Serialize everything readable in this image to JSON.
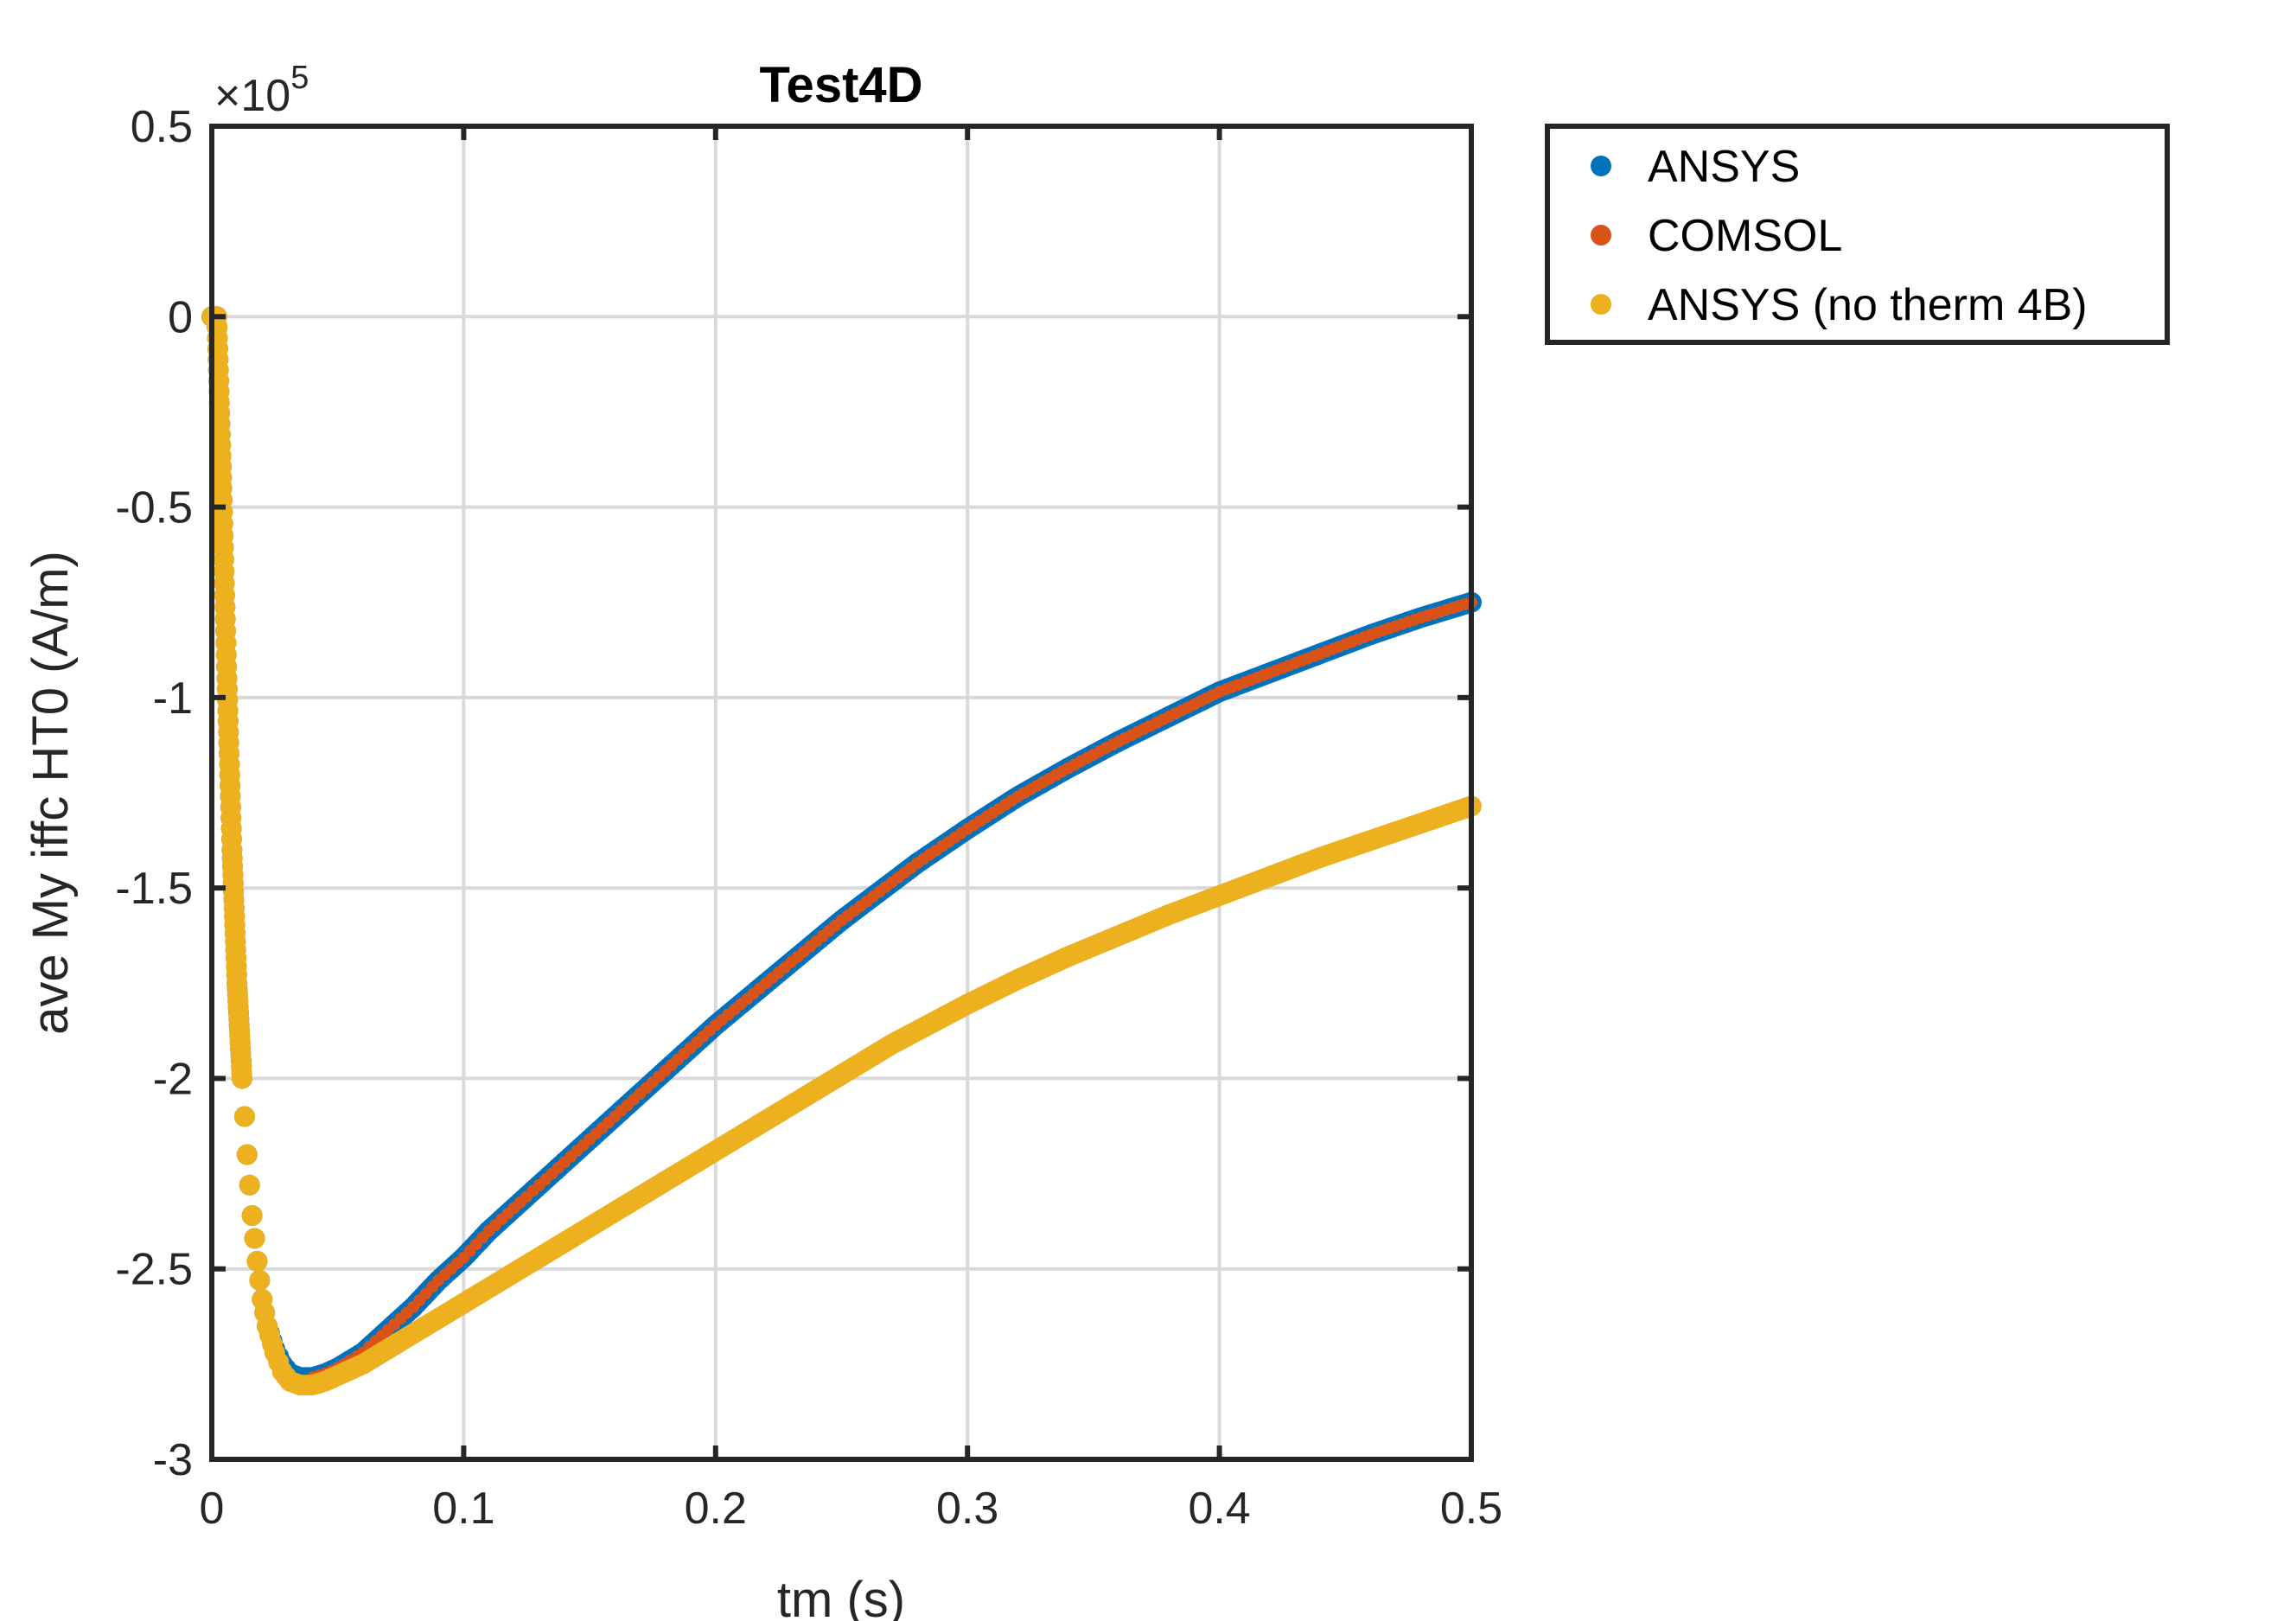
{
  "chart_data": {
    "type": "scatter",
    "title": "Test4D",
    "xlabel": "tm (s)",
    "ylabel": "ave My iffc HT0 (A/m)",
    "xlim": [
      0,
      0.5
    ],
    "ylim": [
      -300000,
      50000
    ],
    "x_ticks": [
      0,
      0.1,
      0.2,
      0.3,
      0.4,
      0.5
    ],
    "x_tick_labels": [
      "0",
      "0.1",
      "0.2",
      "0.3",
      "0.4",
      "0.5"
    ],
    "y_ticks": [
      50000,
      0,
      -50000,
      -100000,
      -150000,
      -200000,
      -250000,
      -300000
    ],
    "y_tick_labels": [
      "0.5",
      "0",
      "-0.5",
      "-1",
      "-1.5",
      "-2",
      "-2.5",
      "-3"
    ],
    "y_exponent": {
      "base": "×10",
      "power": "5"
    },
    "grid": true,
    "legend_position": "outside-top-right",
    "series": [
      {
        "name": "ANSYS",
        "color": "#0072BD",
        "marker": "dot",
        "points": [
          [
            0.0,
            0
          ],
          [
            0.002,
            0
          ],
          [
            0.004,
            -45000
          ],
          [
            0.006,
            -95000
          ],
          [
            0.008,
            -140000
          ],
          [
            0.01,
            -175000
          ],
          [
            0.012,
            -200000
          ],
          [
            0.014,
            -220000
          ],
          [
            0.016,
            -236000
          ],
          [
            0.018,
            -248000
          ],
          [
            0.02,
            -258000
          ],
          [
            0.022,
            -265000
          ],
          [
            0.025,
            -271000
          ],
          [
            0.028,
            -275000
          ],
          [
            0.031,
            -277500
          ],
          [
            0.035,
            -278500
          ],
          [
            0.04,
            -278500
          ],
          [
            0.045,
            -277500
          ],
          [
            0.05,
            -276000
          ],
          [
            0.06,
            -272000
          ],
          [
            0.07,
            -266000
          ],
          [
            0.08,
            -260000
          ],
          [
            0.09,
            -253000
          ],
          [
            0.1,
            -247000
          ],
          [
            0.11,
            -240000
          ],
          [
            0.12,
            -234000
          ],
          [
            0.13,
            -228000
          ],
          [
            0.14,
            -222000
          ],
          [
            0.15,
            -216000
          ],
          [
            0.16,
            -210000
          ],
          [
            0.17,
            -204000
          ],
          [
            0.18,
            -198000
          ],
          [
            0.19,
            -192000
          ],
          [
            0.2,
            -186000
          ],
          [
            0.21,
            -180500
          ],
          [
            0.22,
            -175000
          ],
          [
            0.23,
            -169500
          ],
          [
            0.24,
            -164000
          ],
          [
            0.25,
            -158500
          ],
          [
            0.26,
            -153500
          ],
          [
            0.27,
            -148500
          ],
          [
            0.28,
            -143500
          ],
          [
            0.29,
            -139000
          ],
          [
            0.3,
            -134500
          ],
          [
            0.32,
            -126000
          ],
          [
            0.34,
            -118500
          ],
          [
            0.36,
            -111500
          ],
          [
            0.38,
            -105000
          ],
          [
            0.4,
            -98500
          ],
          [
            0.42,
            -93500
          ],
          [
            0.44,
            -88500
          ],
          [
            0.46,
            -83500
          ],
          [
            0.48,
            -79000
          ],
          [
            0.5,
            -75000
          ]
        ]
      },
      {
        "name": "COMSOL",
        "color": "#D95319",
        "marker": "dot",
        "points": [
          [
            0.04,
            -278500
          ],
          [
            0.045,
            -277500
          ],
          [
            0.05,
            -276000
          ],
          [
            0.06,
            -272000
          ],
          [
            0.07,
            -266000
          ],
          [
            0.08,
            -260000
          ],
          [
            0.09,
            -253000
          ],
          [
            0.1,
            -247000
          ],
          [
            0.11,
            -240000
          ],
          [
            0.12,
            -234000
          ],
          [
            0.13,
            -228000
          ],
          [
            0.14,
            -222000
          ],
          [
            0.15,
            -216000
          ],
          [
            0.16,
            -210000
          ],
          [
            0.17,
            -204000
          ],
          [
            0.18,
            -198000
          ],
          [
            0.19,
            -192000
          ],
          [
            0.2,
            -186000
          ],
          [
            0.21,
            -180500
          ],
          [
            0.22,
            -175000
          ],
          [
            0.23,
            -169500
          ],
          [
            0.24,
            -164000
          ],
          [
            0.25,
            -158500
          ],
          [
            0.26,
            -153500
          ],
          [
            0.27,
            -148500
          ],
          [
            0.28,
            -143500
          ],
          [
            0.29,
            -139000
          ],
          [
            0.3,
            -134500
          ],
          [
            0.32,
            -126000
          ],
          [
            0.34,
            -118500
          ],
          [
            0.36,
            -111500
          ],
          [
            0.38,
            -105000
          ],
          [
            0.4,
            -98500
          ],
          [
            0.42,
            -93500
          ],
          [
            0.44,
            -88500
          ],
          [
            0.46,
            -83500
          ],
          [
            0.48,
            -79000
          ],
          [
            0.5,
            -75000
          ]
        ]
      },
      {
        "name": "ANSYS (no therm 4B)",
        "color": "#EDB120",
        "marker": "dot",
        "points": [
          [
            0.0,
            0
          ],
          [
            0.002,
            0
          ],
          [
            0.004,
            -45000
          ],
          [
            0.006,
            -95000
          ],
          [
            0.008,
            -140000
          ],
          [
            0.01,
            -175000
          ],
          [
            0.012,
            -200000
          ],
          [
            0.014,
            -220000
          ],
          [
            0.016,
            -236000
          ],
          [
            0.018,
            -248000
          ],
          [
            0.02,
            -258000
          ],
          [
            0.022,
            -265000
          ],
          [
            0.025,
            -272000
          ],
          [
            0.028,
            -277000
          ],
          [
            0.031,
            -279500
          ],
          [
            0.035,
            -280500
          ],
          [
            0.04,
            -280500
          ],
          [
            0.045,
            -279500
          ],
          [
            0.05,
            -278000
          ],
          [
            0.06,
            -275000
          ],
          [
            0.07,
            -271000
          ],
          [
            0.08,
            -267000
          ],
          [
            0.09,
            -263000
          ],
          [
            0.1,
            -259000
          ],
          [
            0.11,
            -255000
          ],
          [
            0.12,
            -251000
          ],
          [
            0.13,
            -247000
          ],
          [
            0.14,
            -243000
          ],
          [
            0.15,
            -239000
          ],
          [
            0.16,
            -235000
          ],
          [
            0.17,
            -231000
          ],
          [
            0.18,
            -227000
          ],
          [
            0.19,
            -223000
          ],
          [
            0.2,
            -219000
          ],
          [
            0.21,
            -215000
          ],
          [
            0.22,
            -211000
          ],
          [
            0.23,
            -207000
          ],
          [
            0.24,
            -203000
          ],
          [
            0.25,
            -199000
          ],
          [
            0.26,
            -195000
          ],
          [
            0.27,
            -191000
          ],
          [
            0.28,
            -187500
          ],
          [
            0.29,
            -184000
          ],
          [
            0.3,
            -180500
          ],
          [
            0.32,
            -174000
          ],
          [
            0.34,
            -168000
          ],
          [
            0.36,
            -162500
          ],
          [
            0.38,
            -157000
          ],
          [
            0.4,
            -152000
          ],
          [
            0.42,
            -147000
          ],
          [
            0.44,
            -142000
          ],
          [
            0.46,
            -137500
          ],
          [
            0.48,
            -133000
          ],
          [
            0.5,
            -128500
          ]
        ]
      }
    ]
  }
}
